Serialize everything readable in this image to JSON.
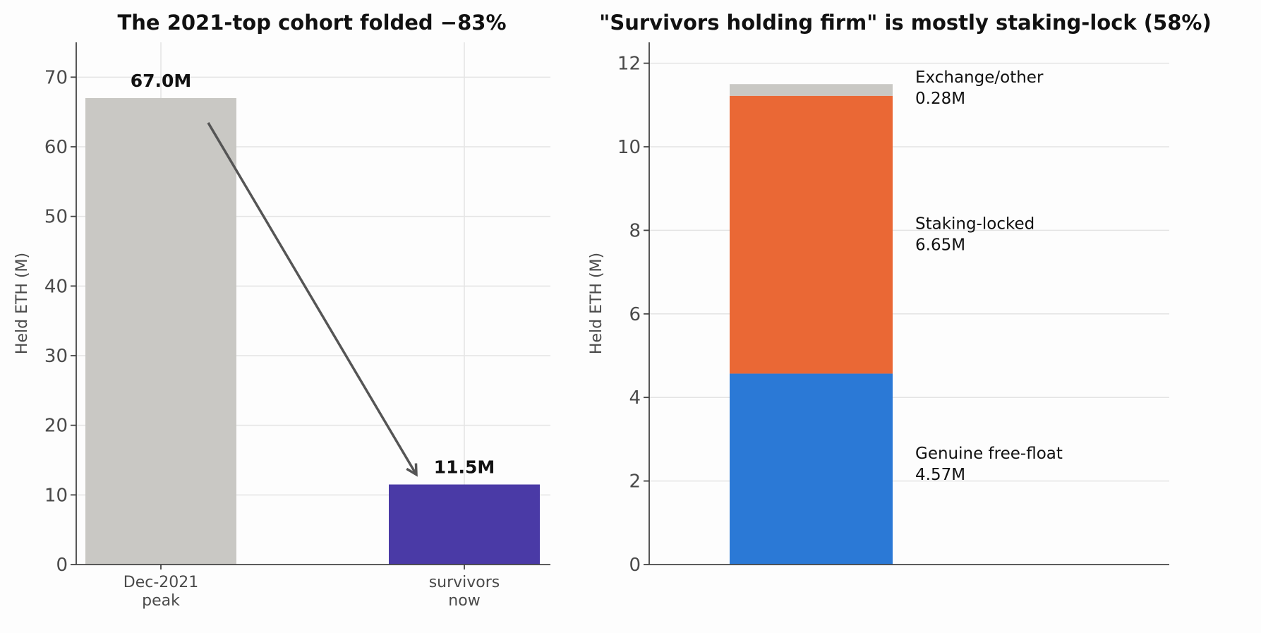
{
  "chart_data": [
    {
      "type": "bar",
      "title": "The 2021-top cohort folded −83%",
      "ylabel": "Held ETH (M)",
      "ylim": [
        0,
        75
      ],
      "yticks": [
        0,
        10,
        20,
        30,
        40,
        50,
        60,
        70
      ],
      "grid": true,
      "categories": [
        {
          "line1": "Dec-2021",
          "line2": "peak"
        },
        {
          "line1": "survivors",
          "line2": "now"
        }
      ],
      "values": [
        67.0,
        11.5
      ],
      "value_labels": [
        "67.0M",
        "11.5M"
      ],
      "colors": [
        "#c9c8c4",
        "#4a3aa6"
      ],
      "annotation": {
        "type": "arrow",
        "from_category": 0,
        "to_category": 1,
        "color": "#555555"
      }
    },
    {
      "type": "bar",
      "stacked": true,
      "title": "\"Survivors holding firm\" is mostly staking-lock (58%)",
      "ylabel": "Held ETH (M)",
      "ylim": [
        0,
        12.5
      ],
      "yticks": [
        0,
        2,
        4,
        6,
        8,
        10,
        12
      ],
      "grid": true,
      "series": [
        {
          "name": "Genuine free-float",
          "value": 4.57,
          "label": "4.57M",
          "color": "#2b79d6"
        },
        {
          "name": "Staking-locked",
          "value": 6.65,
          "label": "6.65M",
          "color": "#ea6835"
        },
        {
          "name": "Exchange/other",
          "value": 0.28,
          "label": "0.28M",
          "color": "#c9c8c4"
        }
      ]
    }
  ]
}
